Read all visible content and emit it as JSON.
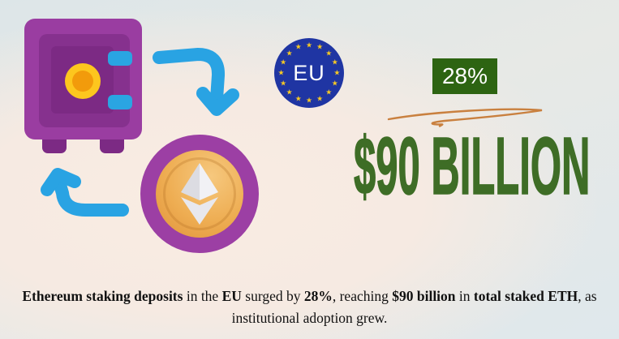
{
  "infographic": {
    "headline": "$90 BILLION",
    "percent_badge": "28%",
    "eu_label": "EU",
    "eu_star_count": 16,
    "caption_segments": [
      {
        "text": "Ethereum staking deposits",
        "bold": true
      },
      {
        "text": " in the ",
        "bold": false
      },
      {
        "text": "EU",
        "bold": true
      },
      {
        "text": " surged by ",
        "bold": false
      },
      {
        "text": "28%",
        "bold": true
      },
      {
        "text": ", reaching ",
        "bold": false
      },
      {
        "text": "$90 billion",
        "bold": true
      },
      {
        "text": " in ",
        "bold": false
      },
      {
        "text": "total staked ETH",
        "bold": true
      },
      {
        "text": ", as",
        "bold": false
      },
      {
        "text": "institutional adoption grew.",
        "bold": false
      }
    ],
    "colors": {
      "headline_green": "#3e6d26",
      "percent_badge_green": "#2d6412",
      "arrow_blue": "#29a3e3",
      "vault_purple": "#9a3da1",
      "vault_purple_dark": "#7c2a84",
      "vault_dial_yellow": "#fdc61e",
      "vault_dial_orange": "#f29b0b",
      "coin_ring_purple": "#9c3fa4",
      "coin_gold_light": "#f6c87e",
      "coin_gold_dark": "#e0923a",
      "eu_blue": "#1f35a3",
      "eu_star_yellow": "#f7c924",
      "squiggle_orange": "#c9803f",
      "caption_text": "#111111",
      "bg_top": "#dde6e8",
      "bg_blush": "#f8ebe2",
      "bg_bottom_right": "#dfe8ec"
    }
  }
}
